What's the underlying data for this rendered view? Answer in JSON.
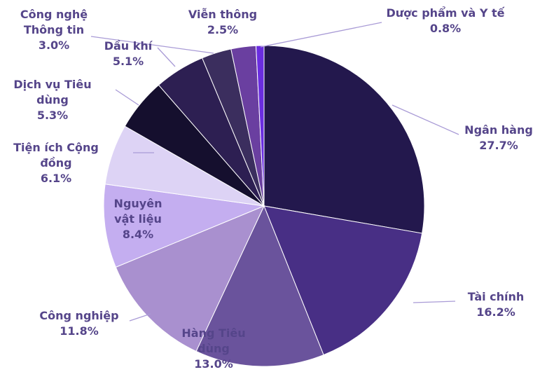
{
  "chart_data": {
    "type": "pie",
    "categories": [
      "Ngân hàng",
      "Tài chính",
      "Hàng Tiêu dùng",
      "Công nghiệp",
      "Nguyên vật liệu",
      "Tiện ích Cộng đồng",
      "Dịch vụ Tiêu dùng",
      "Dầu khí",
      "Công nghệ Thông tin",
      "Viễn thông",
      "Dược phẩm và Y tế"
    ],
    "values": [
      27.7,
      16.2,
      13.0,
      11.8,
      8.4,
      6.1,
      5.3,
      5.1,
      3.0,
      2.5,
      0.8
    ],
    "value_labels": [
      "27.7%",
      "16.2%",
      "13.0%",
      "11.8%",
      "8.4%",
      "6.1%",
      "5.3%",
      "5.1%",
      "3.0%",
      "2.5%",
      "0.8%"
    ],
    "colors": [
      "#23184d",
      "#482f85",
      "#6a539c",
      "#a990cf",
      "#c4aef0",
      "#ddd3f5",
      "#150f2e",
      "#2d1f52",
      "#3b2e5e",
      "#6a3fa0",
      "#6a2de0"
    ]
  }
}
